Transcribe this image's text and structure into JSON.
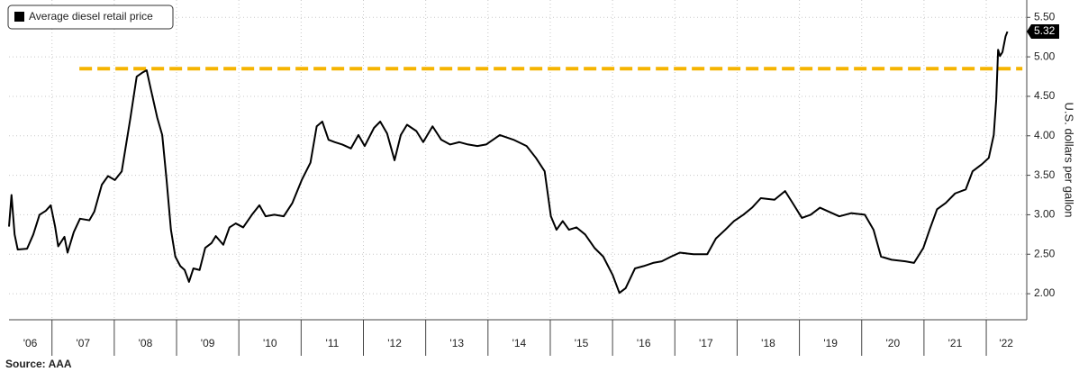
{
  "chart_data": {
    "type": "line",
    "legend": "top-left",
    "y_label": "U.S. dollars per gallon",
    "source": "Source: AAA",
    "last_value_label": "5.32",
    "xlim": [
      2006.31,
      2022.65
    ],
    "ylim": [
      1.67,
      5.72
    ],
    "yticks": [
      {
        "value": 2.0,
        "label": "2.00"
      },
      {
        "value": 2.5,
        "label": "2.50"
      },
      {
        "value": 3.0,
        "label": "3.00"
      },
      {
        "value": 3.5,
        "label": "3.50"
      },
      {
        "value": 4.0,
        "label": "4.00"
      },
      {
        "value": 4.5,
        "label": "4.50"
      },
      {
        "value": 5.0,
        "label": "5.00"
      },
      {
        "value": 5.5,
        "label": "5.50"
      }
    ],
    "xticks": [
      {
        "value": 2006.65,
        "label": "'06"
      },
      {
        "value": 2007.5,
        "label": "'07"
      },
      {
        "value": 2008.5,
        "label": "'08"
      },
      {
        "value": 2009.5,
        "label": "'09"
      },
      {
        "value": 2010.5,
        "label": "'10"
      },
      {
        "value": 2011.5,
        "label": "'11"
      },
      {
        "value": 2012.5,
        "label": "'12"
      },
      {
        "value": 2013.5,
        "label": "'13"
      },
      {
        "value": 2014.5,
        "label": "'14"
      },
      {
        "value": 2015.5,
        "label": "'15"
      },
      {
        "value": 2016.5,
        "label": "'16"
      },
      {
        "value": 2017.5,
        "label": "'17"
      },
      {
        "value": 2018.5,
        "label": "'18"
      },
      {
        "value": 2019.5,
        "label": "'19"
      },
      {
        "value": 2020.5,
        "label": "'20"
      },
      {
        "value": 2021.5,
        "label": "'21"
      },
      {
        "value": 2022.32,
        "label": "'22"
      }
    ],
    "xgrid": [
      2007,
      2008,
      2009,
      2010,
      2011,
      2012,
      2013,
      2014,
      2015,
      2016,
      2017,
      2018,
      2019,
      2020,
      2021,
      2022
    ],
    "grid": true,
    "reference_line": {
      "value": 4.85,
      "x": [
        2007.44,
        2022.58
      ],
      "color": "#f5b400"
    },
    "x": [
      2006.31,
      2006.35,
      2006.4,
      2006.45,
      2006.6,
      2006.7,
      2006.8,
      2006.9,
      2006.98,
      2007.05,
      2007.1,
      2007.2,
      2007.25,
      2007.35,
      2007.45,
      2007.6,
      2007.68,
      2007.8,
      2007.9,
      2008.01,
      2008.12,
      2008.19,
      2008.26,
      2008.36,
      2008.45,
      2008.52,
      2008.59,
      2008.69,
      2008.77,
      2008.84,
      2008.91,
      2008.98,
      2009.06,
      2009.13,
      2009.2,
      2009.27,
      2009.37,
      2009.46,
      2009.56,
      2009.63,
      2009.75,
      2009.85,
      2009.95,
      2010.07,
      2010.21,
      2010.33,
      2010.43,
      2010.57,
      2010.72,
      2010.86,
      2011.01,
      2011.15,
      2011.25,
      2011.34,
      2011.44,
      2011.54,
      2011.66,
      2011.8,
      2011.92,
      2012.02,
      2012.17,
      2012.27,
      2012.38,
      2012.5,
      2012.6,
      2012.7,
      2012.85,
      2012.96,
      2013.11,
      2013.25,
      2013.39,
      2013.54,
      2013.68,
      2013.83,
      2013.97,
      2014.19,
      2014.41,
      2014.62,
      2014.77,
      2014.91,
      2015.01,
      2015.1,
      2015.2,
      2015.3,
      2015.42,
      2015.56,
      2015.71,
      2015.85,
      2016.0,
      2016.11,
      2016.21,
      2016.36,
      2016.5,
      2016.65,
      2016.79,
      2016.94,
      2017.08,
      2017.3,
      2017.52,
      2017.66,
      2017.81,
      2017.95,
      2018.1,
      2018.24,
      2018.38,
      2018.6,
      2018.77,
      2018.89,
      2019.04,
      2019.18,
      2019.33,
      2019.47,
      2019.64,
      2019.83,
      2020.05,
      2020.19,
      2020.31,
      2020.48,
      2020.7,
      2020.84,
      2020.99,
      2021.09,
      2021.21,
      2021.35,
      2021.5,
      2021.67,
      2021.78,
      2021.93,
      2022.04,
      2022.12,
      2022.16,
      2022.19,
      2022.22,
      2022.26,
      2022.31,
      2022.34
    ],
    "series": [
      {
        "name": "Average diesel retail price",
        "color": "#000000",
        "values": [
          2.85,
          3.25,
          2.75,
          2.56,
          2.57,
          2.75,
          3.0,
          3.05,
          3.12,
          2.85,
          2.6,
          2.72,
          2.52,
          2.78,
          2.95,
          2.93,
          3.04,
          3.38,
          3.49,
          3.44,
          3.55,
          3.89,
          4.23,
          4.75,
          4.8,
          4.83,
          4.58,
          4.23,
          4.01,
          3.44,
          2.81,
          2.47,
          2.35,
          2.3,
          2.15,
          2.32,
          2.3,
          2.58,
          2.64,
          2.73,
          2.62,
          2.84,
          2.89,
          2.84,
          3.0,
          3.12,
          2.98,
          3.0,
          2.98,
          3.15,
          3.44,
          3.66,
          4.12,
          4.18,
          3.95,
          3.92,
          3.89,
          3.84,
          4.01,
          3.87,
          4.1,
          4.18,
          4.03,
          3.69,
          4.01,
          4.14,
          4.06,
          3.92,
          4.12,
          3.95,
          3.89,
          3.92,
          3.89,
          3.87,
          3.89,
          4.01,
          3.95,
          3.87,
          3.72,
          3.55,
          2.98,
          2.81,
          2.92,
          2.81,
          2.84,
          2.75,
          2.58,
          2.47,
          2.24,
          2.01,
          2.07,
          2.32,
          2.35,
          2.39,
          2.41,
          2.47,
          2.52,
          2.5,
          2.5,
          2.7,
          2.81,
          2.92,
          3.0,
          3.09,
          3.21,
          3.19,
          3.3,
          3.15,
          2.96,
          3.0,
          3.09,
          3.04,
          2.98,
          3.02,
          3.0,
          2.81,
          2.47,
          2.43,
          2.41,
          2.39,
          2.58,
          2.81,
          3.07,
          3.15,
          3.27,
          3.32,
          3.55,
          3.64,
          3.72,
          4.01,
          4.46,
          5.09,
          5.01,
          5.06,
          5.26,
          5.32
        ]
      }
    ]
  }
}
